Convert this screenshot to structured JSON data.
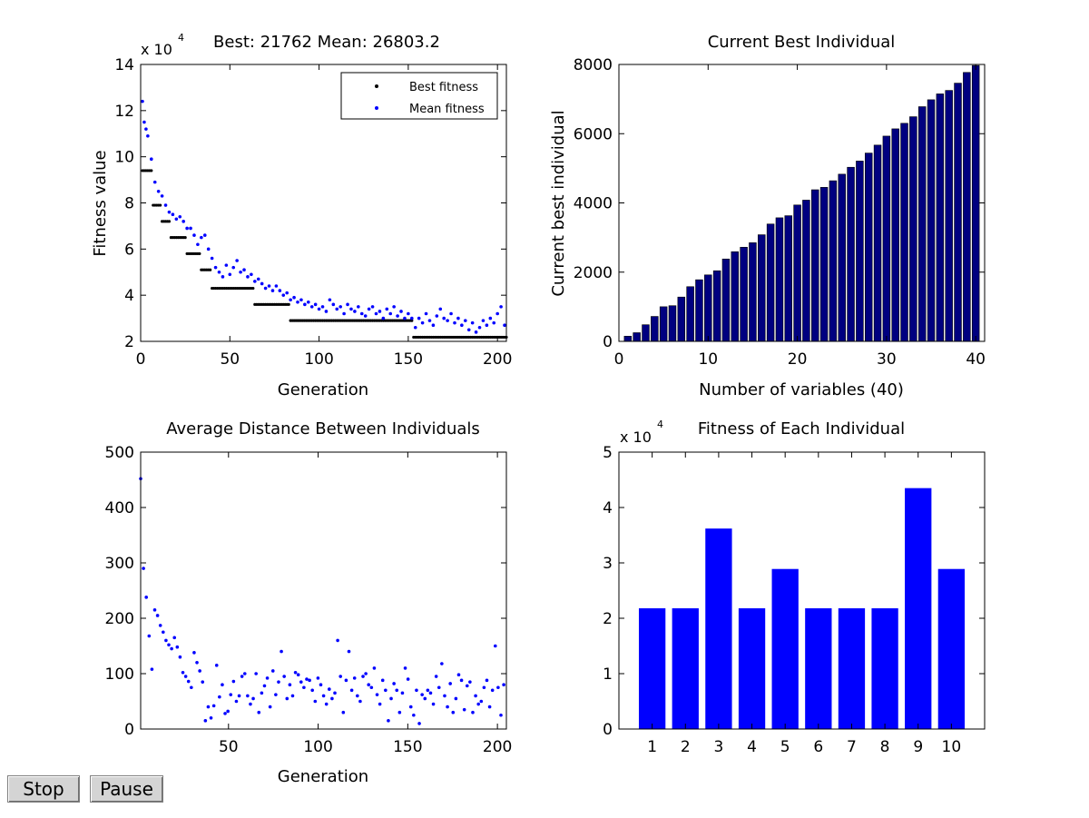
{
  "colors": {
    "best": "#000000",
    "mean": "#0000ff",
    "individual_bar": "#000080",
    "fitness_bar": "#0000ff"
  },
  "buttons": {
    "stop": "Stop",
    "pause": "Pause"
  },
  "chart_data": [
    {
      "type": "scatter",
      "title": "Best: 21762 Mean: 26803.2",
      "xlabel": "Generation",
      "ylabel": "Fitness value",
      "multiplier_label": "x 10",
      "multiplier_exp": "4",
      "xlim": [
        0,
        205
      ],
      "ylim": [
        2,
        14
      ],
      "xticks": [
        0,
        50,
        100,
        150,
        200
      ],
      "yticks": [
        2,
        4,
        6,
        8,
        10,
        12,
        14
      ],
      "legend": {
        "position": "top-right",
        "entries": [
          "Best fitness",
          "Mean fitness"
        ]
      },
      "best_steps": [
        {
          "from": 1,
          "to": 6,
          "value": 9.4
        },
        {
          "from": 7,
          "to": 11,
          "value": 7.9
        },
        {
          "from": 12,
          "to": 16,
          "value": 7.2
        },
        {
          "from": 17,
          "to": 25,
          "value": 6.5
        },
        {
          "from": 26,
          "to": 33,
          "value": 5.8
        },
        {
          "from": 34,
          "to": 39,
          "value": 5.1
        },
        {
          "from": 40,
          "to": 63,
          "value": 4.3
        },
        {
          "from": 64,
          "to": 83,
          "value": 3.6
        },
        {
          "from": 84,
          "to": 152,
          "value": 2.9
        },
        {
          "from": 153,
          "to": 205,
          "value": 2.18
        }
      ],
      "series": [
        {
          "name": "Mean fitness",
          "points": [
            [
              1,
              12.4
            ],
            [
              2,
              11.5
            ],
            [
              3,
              11.2
            ],
            [
              4,
              10.9
            ],
            [
              6,
              9.9
            ],
            [
              8,
              8.9
            ],
            [
              10,
              8.5
            ],
            [
              12,
              8.3
            ],
            [
              14,
              7.9
            ],
            [
              16,
              7.6
            ],
            [
              18,
              7.5
            ],
            [
              20,
              7.3
            ],
            [
              22,
              7.4
            ],
            [
              24,
              7.2
            ],
            [
              26,
              6.9
            ],
            [
              28,
              6.9
            ],
            [
              30,
              6.6
            ],
            [
              32,
              6.2
            ],
            [
              34,
              6.5
            ],
            [
              36,
              6.6
            ],
            [
              38,
              6.0
            ],
            [
              40,
              5.6
            ],
            [
              42,
              5.2
            ],
            [
              44,
              5.0
            ],
            [
              46,
              4.8
            ],
            [
              48,
              5.3
            ],
            [
              50,
              4.9
            ],
            [
              52,
              5.2
            ],
            [
              54,
              5.5
            ],
            [
              56,
              5.0
            ],
            [
              58,
              5.1
            ],
            [
              60,
              4.8
            ],
            [
              62,
              4.9
            ],
            [
              64,
              4.6
            ],
            [
              66,
              4.7
            ],
            [
              68,
              4.5
            ],
            [
              70,
              4.3
            ],
            [
              72,
              4.4
            ],
            [
              74,
              4.2
            ],
            [
              76,
              4.4
            ],
            [
              78,
              4.2
            ],
            [
              80,
              4.0
            ],
            [
              82,
              4.1
            ],
            [
              84,
              3.8
            ],
            [
              86,
              3.9
            ],
            [
              88,
              3.7
            ],
            [
              90,
              3.8
            ],
            [
              92,
              3.6
            ],
            [
              94,
              3.7
            ],
            [
              96,
              3.5
            ],
            [
              98,
              3.6
            ],
            [
              100,
              3.4
            ],
            [
              102,
              3.5
            ],
            [
              104,
              3.3
            ],
            [
              106,
              3.8
            ],
            [
              108,
              3.6
            ],
            [
              110,
              3.4
            ],
            [
              112,
              3.5
            ],
            [
              114,
              3.2
            ],
            [
              116,
              3.6
            ],
            [
              118,
              3.4
            ],
            [
              120,
              3.3
            ],
            [
              122,
              3.5
            ],
            [
              124,
              3.2
            ],
            [
              126,
              3.1
            ],
            [
              128,
              3.4
            ],
            [
              130,
              3.5
            ],
            [
              132,
              3.2
            ],
            [
              134,
              3.3
            ],
            [
              136,
              3.0
            ],
            [
              138,
              3.4
            ],
            [
              140,
              3.2
            ],
            [
              142,
              3.5
            ],
            [
              144,
              3.1
            ],
            [
              146,
              3.3
            ],
            [
              148,
              3.0
            ],
            [
              150,
              3.2
            ],
            [
              152,
              3.0
            ],
            [
              154,
              2.6
            ],
            [
              156,
              3.0
            ],
            [
              158,
              2.8
            ],
            [
              160,
              3.2
            ],
            [
              162,
              2.9
            ],
            [
              164,
              2.7
            ],
            [
              166,
              3.1
            ],
            [
              168,
              3.4
            ],
            [
              170,
              3.0
            ],
            [
              172,
              2.9
            ],
            [
              174,
              3.2
            ],
            [
              176,
              2.8
            ],
            [
              178,
              3.0
            ],
            [
              180,
              2.7
            ],
            [
              182,
              2.9
            ],
            [
              184,
              2.5
            ],
            [
              186,
              2.8
            ],
            [
              188,
              2.4
            ],
            [
              190,
              2.6
            ],
            [
              192,
              2.9
            ],
            [
              194,
              2.7
            ],
            [
              196,
              3.0
            ],
            [
              198,
              2.8
            ],
            [
              200,
              3.2
            ],
            [
              202,
              3.5
            ],
            [
              204,
              2.7
            ]
          ]
        }
      ]
    },
    {
      "type": "bar",
      "title": "Current Best Individual",
      "xlabel": "Number of variables (40)",
      "ylabel": "Current best individual",
      "xlim": [
        0,
        41
      ],
      "ylim": [
        0,
        8000
      ],
      "xticks": [
        0,
        10,
        20,
        30,
        40
      ],
      "yticks": [
        0,
        2000,
        4000,
        6000,
        8000
      ],
      "values": [
        150,
        250,
        480,
        720,
        1000,
        1030,
        1280,
        1580,
        1780,
        1920,
        2040,
        2380,
        2590,
        2720,
        2850,
        3080,
        3390,
        3570,
        3630,
        3940,
        4080,
        4380,
        4450,
        4640,
        4830,
        5030,
        5210,
        5440,
        5670,
        5930,
        6140,
        6300,
        6490,
        6780,
        6980,
        7150,
        7250,
        7460,
        7770,
        7970
      ]
    },
    {
      "type": "scatter",
      "title": "Average Distance Between Individuals",
      "xlabel": "Generation",
      "ylabel": "",
      "xlim": [
        1,
        205
      ],
      "ylim": [
        0,
        500
      ],
      "xticks": [
        50,
        100,
        150,
        200
      ],
      "yticks": [
        0,
        100,
        200,
        300,
        400,
        500
      ],
      "values": [
        452,
        290,
        238,
        168,
        108,
        215,
        205,
        187,
        175,
        160,
        152,
        145,
        165,
        148,
        130,
        102,
        95,
        86,
        75,
        138,
        120,
        105,
        85,
        15,
        40,
        20,
        42,
        115,
        58,
        80,
        28,
        32,
        62,
        86,
        50,
        60,
        95,
        100,
        60,
        45,
        55,
        100,
        30,
        65,
        78,
        92,
        40,
        105,
        62,
        85,
        140,
        95,
        55,
        80,
        60,
        102,
        98,
        85,
        75,
        90,
        88,
        70,
        50,
        92,
        80,
        60,
        45,
        72,
        55,
        65,
        160,
        95,
        30,
        88,
        140,
        70,
        92,
        60,
        50,
        95,
        100,
        80,
        75,
        110,
        62,
        45,
        88,
        70,
        15,
        55,
        82,
        70,
        30,
        65,
        110,
        90,
        40,
        25,
        70,
        10,
        62,
        55,
        70,
        65,
        45,
        95,
        75,
        118,
        60,
        40,
        82,
        30,
        55,
        98,
        88,
        35,
        78,
        85,
        30,
        60,
        45,
        50,
        75,
        88,
        40,
        70,
        150,
        75,
        25,
        80
      ],
      "x_start": 1,
      "x_step": 1.57
    },
    {
      "type": "bar",
      "title": "Fitness of Each Individual",
      "multiplier_label": "x 10",
      "multiplier_exp": "4",
      "categories": [
        "1",
        "2",
        "3",
        "4",
        "5",
        "6",
        "7",
        "8",
        "9",
        "10"
      ],
      "values": [
        2.18,
        2.18,
        3.62,
        2.18,
        2.89,
        2.18,
        2.18,
        2.18,
        4.35,
        2.89
      ],
      "xlim": [
        0,
        11
      ],
      "ylim": [
        0,
        5
      ],
      "yticks": [
        0,
        1,
        2,
        3,
        4,
        5
      ]
    }
  ]
}
